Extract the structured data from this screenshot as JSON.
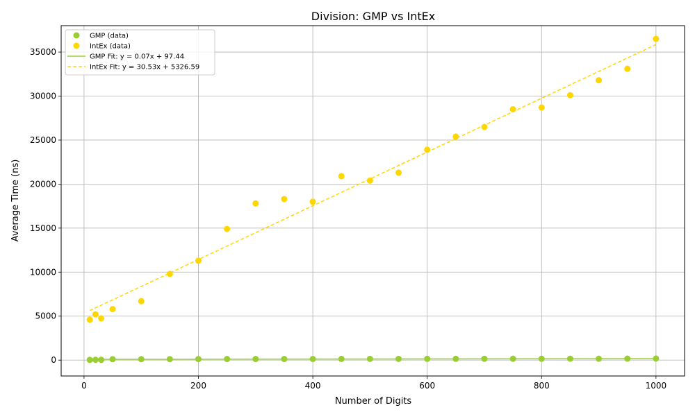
{
  "chart_data": {
    "type": "scatter",
    "title": "Division: GMP vs IntEx",
    "xlabel": "Number of Digits",
    "ylabel": "Average Time (ns)",
    "xlim": [
      -40,
      1050
    ],
    "ylim": [
      -1800,
      38000
    ],
    "xticks": [
      0,
      200,
      400,
      600,
      800,
      1000
    ],
    "yticks": [
      0,
      5000,
      10000,
      15000,
      20000,
      25000,
      30000,
      35000
    ],
    "grid": true,
    "legend_position": "top-left",
    "x": [
      10,
      20,
      30,
      50,
      100,
      150,
      200,
      250,
      300,
      350,
      400,
      450,
      500,
      550,
      600,
      650,
      700,
      750,
      800,
      850,
      900,
      950,
      1000
    ],
    "series": [
      {
        "name": "GMP (data)",
        "kind": "points",
        "color": "#9acd32",
        "values": [
          30,
          45,
          40,
          110,
          110,
          115,
          125,
          130,
          130,
          130,
          135,
          140,
          145,
          145,
          150,
          150,
          155,
          160,
          160,
          165,
          160,
          170,
          180
        ]
      },
      {
        "name": "IntEx (data)",
        "kind": "points",
        "color": "#ffd700",
        "values": [
          4600,
          5200,
          4750,
          5800,
          6700,
          9800,
          11300,
          14900,
          17800,
          18300,
          18000,
          20900,
          20400,
          21300,
          23900,
          25400,
          26500,
          28500,
          28700,
          30100,
          31800,
          33100,
          36500
        ]
      },
      {
        "name": "GMP Fit: y = 0.07x + 97.44",
        "kind": "fit",
        "style": "solid",
        "color": "#9acd32",
        "slope": 0.07,
        "intercept": 97.44
      },
      {
        "name": "IntEx Fit: y = 30.53x + 5326.59",
        "kind": "fit",
        "style": "dashed",
        "color": "#ffd700",
        "slope": 30.53,
        "intercept": 5326.59
      }
    ]
  }
}
